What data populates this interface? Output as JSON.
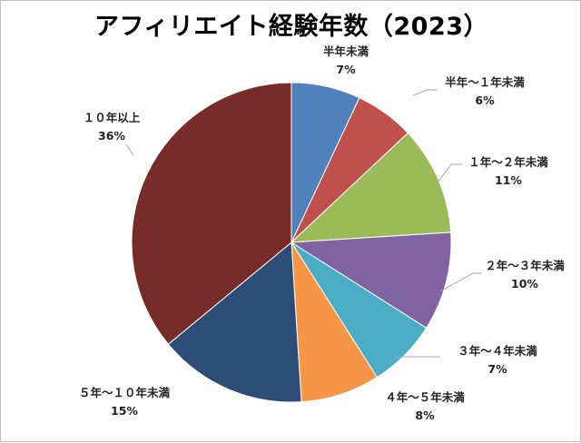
{
  "chart_data": {
    "type": "pie",
    "title": "アフィリエイト経験年数（2023）",
    "slices": [
      {
        "label": "半年未満",
        "value": 7,
        "display": "7%",
        "color": "#4f81bd"
      },
      {
        "label": "半年～１年未満",
        "value": 6,
        "display": "6%",
        "color": "#c0504d"
      },
      {
        "label": "１年～２年未満",
        "value": 11,
        "display": "11%",
        "color": "#9bbb59"
      },
      {
        "label": "２年～３年未満",
        "value": 10,
        "display": "10%",
        "color": "#8064a2"
      },
      {
        "label": "３年～４年未満",
        "value": 7,
        "display": "7%",
        "color": "#4bacc6"
      },
      {
        "label": "４年～５年未満",
        "value": 8,
        "display": "8%",
        "color": "#f79646"
      },
      {
        "label": "５年～１０年未満",
        "value": 15,
        "display": "15%",
        "color": "#2c4d75"
      },
      {
        "label": "１０年以上",
        "value": 36,
        "display": "36%",
        "color": "#772c2a"
      }
    ]
  }
}
